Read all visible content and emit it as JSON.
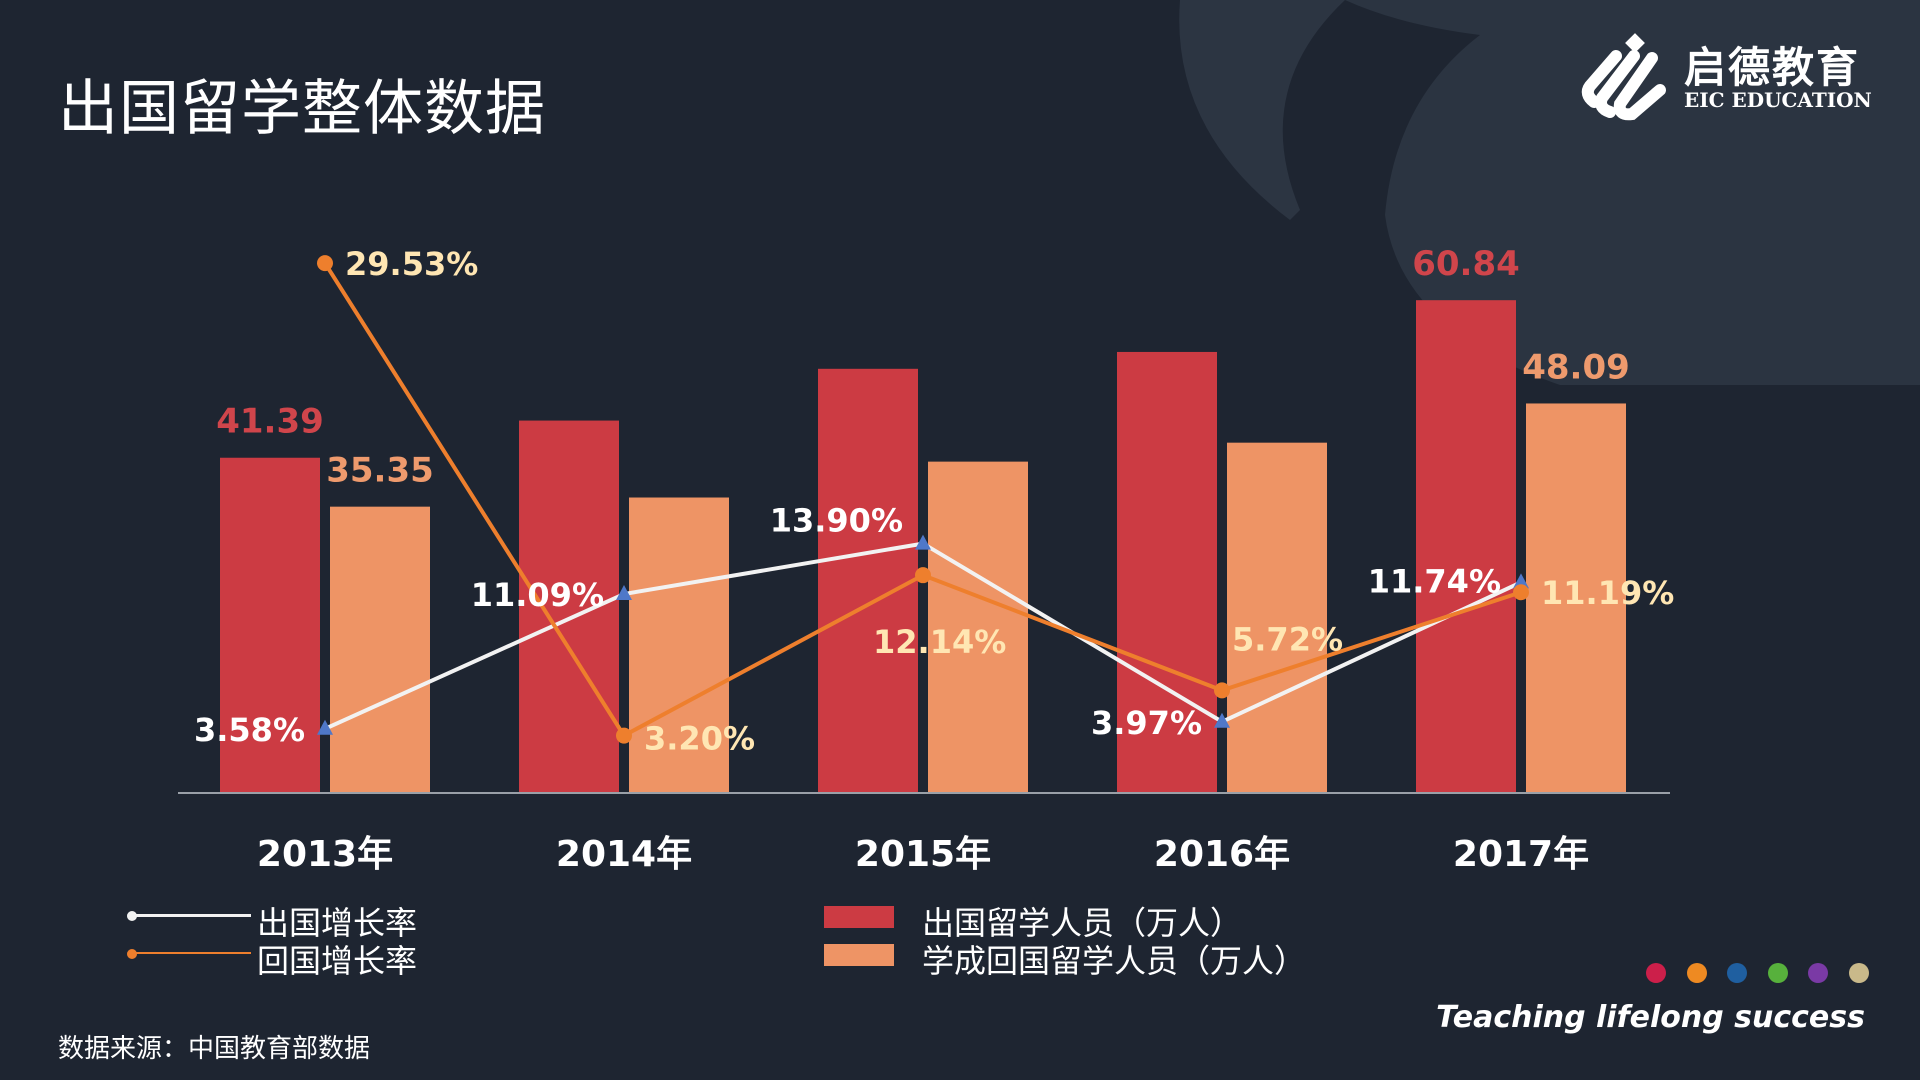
{
  "page": {
    "title": "出国留学整体数据",
    "source": "数据来源：中国教育部数据",
    "tagline": "Teaching lifelong success"
  },
  "brand": {
    "name": "启德教育",
    "name_en": "EIC EDUCATION",
    "icon": "eic-logo-icon"
  },
  "colors": {
    "background": "#1e2531",
    "outbound_bar": "#cc3b43",
    "returned_bar": "#ee9465",
    "outbound_line": "#f2f2f2",
    "returned_line": "#ee7f2d",
    "triangle_marker": "#4f78c9",
    "outbound_label": "#d0454b",
    "returned_label": "#ee9a6d",
    "returned_rate_label": "#ffe6b3",
    "dots": [
      "#cc1f4a",
      "#ee8a22",
      "#1f5fa0",
      "#57b13c",
      "#7a3aa5",
      "#c9b98a"
    ]
  },
  "legend": {
    "outbound_rate": "出国增长率",
    "returned_rate": "回国增长率",
    "outbound_people": "出国留学人员（万人）",
    "returned_people": "学成回国留学人员（万人）"
  },
  "chart_data": {
    "type": "bar+line",
    "title": "出国留学整体数据",
    "categories": [
      "2013年",
      "2014年",
      "2015年",
      "2016年",
      "2017年"
    ],
    "series": [
      {
        "name": "出国留学人员（万人）",
        "kind": "bar",
        "axis": "left",
        "values": [
          41.39,
          45.98,
          52.37,
          54.45,
          60.84
        ],
        "labels": [
          "41.39",
          "",
          "",
          "",
          "60.84"
        ]
      },
      {
        "name": "学成回国留学人员（万人）",
        "kind": "bar",
        "axis": "left",
        "values": [
          35.35,
          36.48,
          40.91,
          43.25,
          48.09
        ],
        "labels": [
          "35.35",
          "",
          "",
          "",
          "48.09"
        ]
      },
      {
        "name": "出国增长率",
        "kind": "line",
        "axis": "right",
        "marker": "triangle",
        "values": [
          3.58,
          11.09,
          13.9,
          3.97,
          11.74
        ],
        "labels": [
          "3.58%",
          "11.09%",
          "13.90%",
          "3.97%",
          "11.74%"
        ]
      },
      {
        "name": "回国增长率",
        "kind": "line",
        "axis": "right",
        "marker": "circle",
        "values": [
          29.53,
          3.2,
          12.14,
          5.72,
          11.19
        ],
        "labels": [
          "29.53%",
          "3.20%",
          "12.14%",
          "5.72%",
          "11.19%"
        ]
      }
    ],
    "ylim_left": [
      0,
      80
    ],
    "ylim_right": [
      0,
      35
    ],
    "grid": false
  }
}
